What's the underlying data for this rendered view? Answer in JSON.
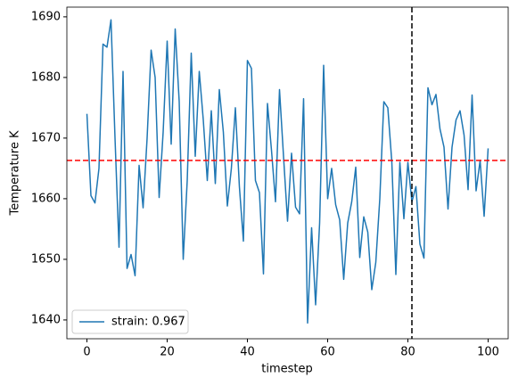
{
  "chart_data": {
    "type": "line",
    "xlabel": "timestep",
    "ylabel": "Temperature K",
    "x": [
      0,
      1,
      2,
      3,
      4,
      5,
      6,
      7,
      8,
      9,
      10,
      11,
      12,
      13,
      14,
      15,
      16,
      17,
      18,
      19,
      20,
      21,
      22,
      23,
      24,
      25,
      26,
      27,
      28,
      29,
      30,
      31,
      32,
      33,
      34,
      35,
      36,
      37,
      38,
      39,
      40,
      41,
      42,
      43,
      44,
      45,
      46,
      47,
      48,
      49,
      50,
      51,
      52,
      53,
      54,
      55,
      56,
      57,
      58,
      59,
      60,
      61,
      62,
      63,
      64,
      65,
      66,
      67,
      68,
      69,
      70,
      71,
      72,
      73,
      74,
      75,
      76,
      77,
      78,
      79,
      80,
      81,
      82,
      83,
      84,
      85,
      86,
      87,
      88,
      89,
      90,
      91,
      92,
      93,
      94,
      95,
      96,
      97,
      98,
      99,
      100
    ],
    "series": [
      {
        "name": "strain: 0.967",
        "color": "#1f77b4",
        "values": [
          1674,
          1660.5,
          1659.3,
          1665,
          1685.5,
          1685,
          1689.5,
          1670,
          1652,
          1681,
          1648.5,
          1650.8,
          1647.3,
          1665.5,
          1658.5,
          1670,
          1684.5,
          1680,
          1660.2,
          1671,
          1686,
          1669,
          1688,
          1676,
          1650,
          1663,
          1684,
          1667,
          1681,
          1673,
          1663,
          1674.5,
          1662.5,
          1678,
          1671,
          1658.8,
          1665,
          1675,
          1662,
          1653,
          1682.8,
          1681.5,
          1663,
          1661,
          1647.6,
          1675.7,
          1668,
          1659.5,
          1678,
          1667,
          1656.3,
          1667.5,
          1658.6,
          1657.5,
          1676.5,
          1639.5,
          1655.2,
          1642.5,
          1656,
          1682,
          1660,
          1665,
          1659,
          1656.5,
          1646.7,
          1656,
          1659.5,
          1665.2,
          1650.3,
          1657,
          1654.5,
          1645,
          1649.5,
          1660,
          1676,
          1675,
          1666,
          1647.5,
          1666,
          1656.7,
          1666,
          1659.5,
          1662,
          1652.5,
          1650.2,
          1678.3,
          1675.5,
          1677.2,
          1671.5,
          1668.5,
          1658.3,
          1668.5,
          1673,
          1674.5,
          1670.5,
          1661.5,
          1677.1,
          1661.3,
          1666.3,
          1657.1,
          1668.3
        ]
      }
    ],
    "hline": {
      "y": 1666.3,
      "color": "#ff0000"
    },
    "vline": {
      "x": 81,
      "color": "#000000"
    },
    "xlim": [
      -5,
      105
    ],
    "ylim": [
      1636.9,
      1691.6
    ],
    "xticks": [
      0,
      20,
      40,
      60,
      80,
      100
    ],
    "yticks": [
      1640,
      1650,
      1660,
      1670,
      1680,
      1690
    ],
    "legend": "lower left"
  }
}
